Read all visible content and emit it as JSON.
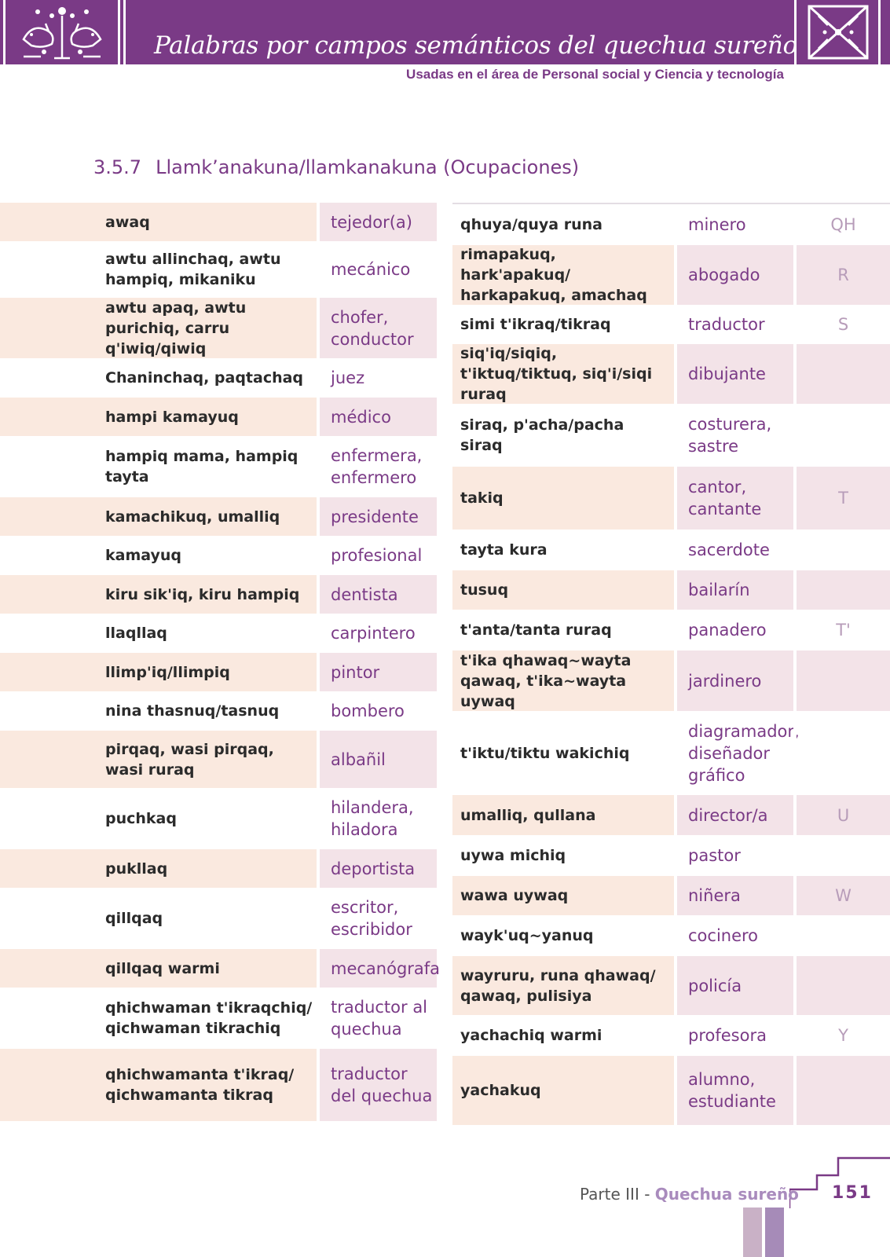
{
  "header": {
    "title": "Palabras por campos semánticos del quechua sureño",
    "subtitle": "Usadas en el área de Personal social y Ciencia y tecnología"
  },
  "section": {
    "number": "3.5.7",
    "title": "Llamk’anakuna/llamkanakuna (Ocupaciones)"
  },
  "left_rows": [
    {
      "q": "awaq",
      "s": "tejedor(a)"
    },
    {
      "q": "awtu allinchaq, awtu hampiq, mikaniku",
      "s": "mecánico"
    },
    {
      "q": "awtu apaq, awtu purichiq, carru q'iwiq/qiwiq",
      "s": "chofer, conductor"
    },
    {
      "q": "Chaninchaq, paqtachaq",
      "s": "juez"
    },
    {
      "q": "hampi kamayuq",
      "s": "médico"
    },
    {
      "q": "hampiq mama, hampiq tayta",
      "s": "enfermera, enfermero"
    },
    {
      "q": "kamachikuq, umalliq",
      "s": "presidente"
    },
    {
      "q": "kamayuq",
      "s": "profesional"
    },
    {
      "q": "kiru sik'iq, kiru hampiq",
      "s": "dentista"
    },
    {
      "q": "llaqllaq",
      "s": "carpintero"
    },
    {
      "q": "llimp'iq/llimpiq",
      "s": "pintor"
    },
    {
      "q": "nina thasnuq/tasnuq",
      "s": "bombero"
    },
    {
      "q": "pirqaq, wasi pirqaq, wasi ruraq",
      "s": "albañil"
    },
    {
      "q": "puchkaq",
      "s": "hilandera, hiladora"
    },
    {
      "q": "pukllaq",
      "s": "deportista"
    },
    {
      "q": "qillqaq",
      "s": "escritor, escribidor"
    },
    {
      "q": "qillqaq warmi",
      "s": "mecanógrafa"
    },
    {
      "q": "qhichwaman t'ikraqchiq/ qichwaman tikrachiq",
      "s": "traductor al quechua"
    },
    {
      "q": "qhichwamanta t'ikraq/ qichwamanta tikraq",
      "s": "traductor del quechua"
    }
  ],
  "right_rows": [
    {
      "q": "qhuya/quya runa",
      "s": "minero",
      "l": "QH"
    },
    {
      "q": "rimapakuq, hark'apakuq/ harkapakuq, amachaq",
      "s": "abogado",
      "l": "R"
    },
    {
      "q": "simi t'ikraq/tikraq",
      "s": "traductor",
      "l": "S"
    },
    {
      "q": "siq'iq/siqiq, t'iktuq/tiktuq, siq'i/siqi ruraq",
      "s": "dibujante",
      "l": ""
    },
    {
      "q": "siraq, p'acha/pacha siraq",
      "s": "costurera, sastre",
      "l": ""
    },
    {
      "q": "takiq",
      "s": "cantor, cantante",
      "l": "T"
    },
    {
      "q": "tayta kura",
      "s": "sacerdote",
      "l": ""
    },
    {
      "q": "tusuq",
      "s": "bailarín",
      "l": ""
    },
    {
      "q": "t'anta/tanta ruraq",
      "s": "panadero",
      "l": "T'"
    },
    {
      "q": "t'ika qhawaq~wayta qawaq, t'ika~wayta uywaq",
      "s": "jardinero",
      "l": ""
    },
    {
      "q": "t'iktu/tiktu wakichiq",
      "s": "diagramador, diseñador gráfico",
      "l": ""
    },
    {
      "q": "umalliq, qullana",
      "s": "director/a",
      "l": "U"
    },
    {
      "q": "uywa michiq",
      "s": "pastor",
      "l": ""
    },
    {
      "q": "wawa uywaq",
      "s": "niñera",
      "l": "W"
    },
    {
      "q": "wayk'uq~yanuq",
      "s": "cocinero",
      "l": ""
    },
    {
      "q": "wayruru, runa qhawaq/ qawaq, pulisiya",
      "s": "policía",
      "l": ""
    },
    {
      "q": "yachachiq warmi",
      "s": "profesora",
      "l": "Y"
    },
    {
      "q": "yachakuq",
      "s": "alumno, estudiante",
      "l": ""
    }
  ],
  "footer": {
    "part": "Parte III - ",
    "part_name": "Quechua sureño",
    "page": "151"
  }
}
